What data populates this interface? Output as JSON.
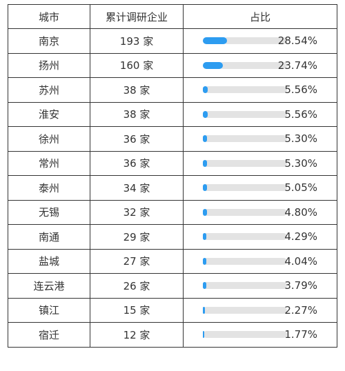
{
  "header": {
    "col_city": "城市",
    "col_count": "累计调研企业",
    "col_ratio": "占比"
  },
  "colors": {
    "bar_fill": "#2d9cf0",
    "bar_track": "#e3e3e3",
    "border": "#333333"
  },
  "rows": [
    {
      "city": "南京",
      "count": "193 家",
      "pct": "28.54%",
      "value": 28.54
    },
    {
      "city": "扬州",
      "count": "160 家",
      "pct": "23.74%",
      "value": 23.74
    },
    {
      "city": "苏州",
      "count": "38 家",
      "pct": "5.56%",
      "value": 5.56
    },
    {
      "city": "淮安",
      "count": "38 家",
      "pct": "5.56%",
      "value": 5.56
    },
    {
      "city": "徐州",
      "count": "36 家",
      "pct": "5.30%",
      "value": 5.3
    },
    {
      "city": "常州",
      "count": "36 家",
      "pct": "5.30%",
      "value": 5.3
    },
    {
      "city": "泰州",
      "count": "34 家",
      "pct": "5.05%",
      "value": 5.05
    },
    {
      "city": "无锡",
      "count": "32 家",
      "pct": "4.80%",
      "value": 4.8
    },
    {
      "city": "南通",
      "count": "29 家",
      "pct": "4.29%",
      "value": 4.29
    },
    {
      "city": "盐城",
      "count": "27 家",
      "pct": "4.04%",
      "value": 4.04
    },
    {
      "city": "连云港",
      "count": "26 家",
      "pct": "3.79%",
      "value": 3.79
    },
    {
      "city": "镇江",
      "count": "15 家",
      "pct": "2.27%",
      "value": 2.27
    },
    {
      "city": "宿迁",
      "count": "12 家",
      "pct": "1.77%",
      "value": 1.77
    }
  ]
}
